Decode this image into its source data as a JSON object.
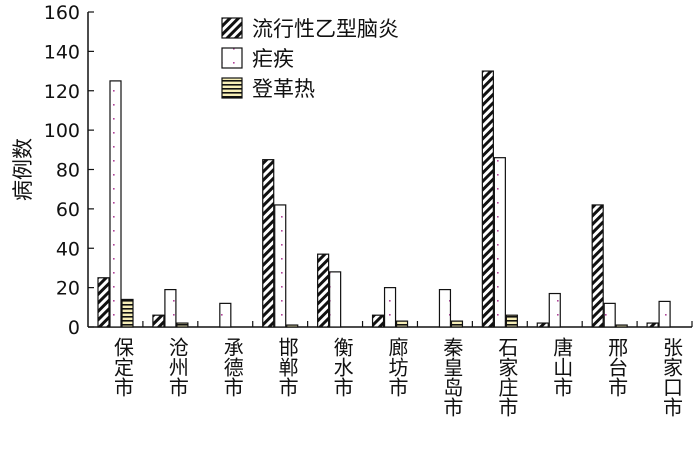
{
  "chart_data": {
    "type": "bar",
    "title": "",
    "xlabel": "",
    "ylabel": "病例数",
    "ylim": [
      0,
      160
    ],
    "yticks": [
      "0",
      "20",
      "40",
      "60",
      "80",
      "100",
      "120",
      "140",
      "160"
    ],
    "categories": [
      "保定市",
      "沧州市",
      "承德市",
      "邯郸市",
      "衡水市",
      "廊坊市",
      "秦皇岛市",
      "石家庄市",
      "唐山市",
      "邢台市",
      "张家口市"
    ],
    "series": [
      {
        "name": "流行性乙型脑炎",
        "pattern": "diagonal-hatch",
        "values": [
          25,
          6,
          0,
          85,
          37,
          6,
          0,
          130,
          2,
          62,
          2
        ]
      },
      {
        "name": "疟疾",
        "pattern": "dotted",
        "values": [
          125,
          19,
          12,
          62,
          28,
          20,
          19,
          86,
          17,
          12,
          13
        ]
      },
      {
        "name": "登革热",
        "pattern": "horizontal-lines",
        "values": [
          14,
          2,
          0,
          1,
          0,
          3,
          3,
          6,
          0,
          1,
          0
        ]
      }
    ],
    "legend_position": "top-center",
    "grid": false
  }
}
